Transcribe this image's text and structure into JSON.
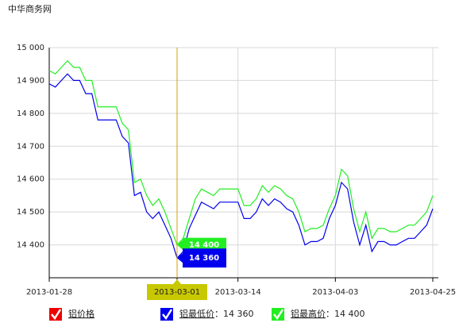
{
  "chart_data": {
    "type": "line",
    "title": "中华商务网",
    "categories": [
      "2013-01-28",
      null,
      null,
      null,
      null,
      null,
      null,
      null,
      null,
      null,
      null,
      null,
      null,
      null,
      null,
      null,
      null,
      null,
      null,
      null,
      null,
      "2013-03-01",
      null,
      null,
      null,
      null,
      null,
      null,
      null,
      null,
      null,
      "2013-03-14",
      null,
      null,
      null,
      null,
      null,
      null,
      null,
      null,
      null,
      null,
      null,
      null,
      null,
      null,
      null,
      "2013-04-03",
      null,
      null,
      null,
      null,
      null,
      null,
      null,
      null,
      null,
      null,
      null,
      null,
      null,
      null,
      null,
      "2013-04-25"
    ],
    "series": [
      {
        "name": "铝最低价",
        "color": "#0000ee",
        "hover_label": "14 360",
        "values": [
          14890,
          14880,
          14900,
          14920,
          14900,
          14900,
          14860,
          14860,
          14780,
          14780,
          14780,
          14780,
          14730,
          14710,
          14550,
          14560,
          14500,
          14480,
          14500,
          14460,
          14420,
          14360,
          14380,
          14450,
          14490,
          14530,
          14520,
          14510,
          14530,
          14530,
          14530,
          14530,
          14480,
          14480,
          14500,
          14540,
          14520,
          14540,
          14530,
          14510,
          14500,
          14460,
          14400,
          14410,
          14410,
          14420,
          14480,
          14520,
          14590,
          14570,
          14470,
          14400,
          14460,
          14380,
          14410,
          14410,
          14400,
          14400,
          14410,
          14420,
          14420,
          14440,
          14460,
          14510
        ]
      },
      {
        "name": "铝最高价",
        "color": "#22ee22",
        "hover_label": "14 400",
        "values": [
          14930,
          14920,
          14940,
          14960,
          14940,
          14940,
          14900,
          14900,
          14820,
          14820,
          14820,
          14820,
          14770,
          14750,
          14590,
          14600,
          14550,
          14520,
          14540,
          14500,
          14450,
          14400,
          14420,
          14480,
          14540,
          14570,
          14560,
          14550,
          14570,
          14570,
          14570,
          14570,
          14520,
          14520,
          14540,
          14580,
          14560,
          14580,
          14570,
          14550,
          14540,
          14500,
          14440,
          14450,
          14450,
          14460,
          14510,
          14550,
          14630,
          14610,
          14510,
          14440,
          14500,
          14420,
          14450,
          14450,
          14440,
          14440,
          14450,
          14460,
          14460,
          14480,
          14500,
          14550
        ]
      }
    ],
    "hidden_series": [
      {
        "name": "铝价格",
        "color": "#ee0000"
      }
    ],
    "legend_separator": "：",
    "hover_index": 21,
    "crosshair_color": "#d4a000",
    "ylim": [
      14300,
      15000
    ],
    "yticks": [
      {
        "value": 14400,
        "label": "14 400"
      },
      {
        "value": 14500,
        "label": "14 500"
      },
      {
        "value": 14600,
        "label": "14 600"
      },
      {
        "value": 14700,
        "label": "14 700"
      },
      {
        "value": 14800,
        "label": "14 800"
      },
      {
        "value": 14900,
        "label": "14 900"
      },
      {
        "value": 15000,
        "label": "15 000"
      }
    ],
    "grid": true
  }
}
